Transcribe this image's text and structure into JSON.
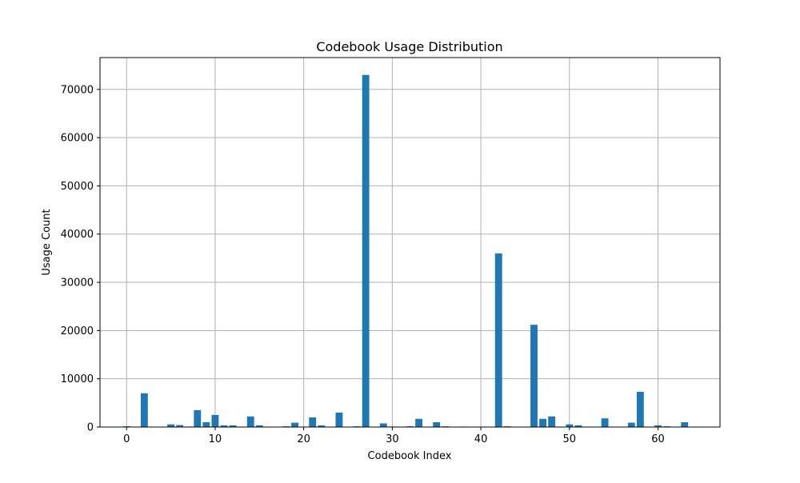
{
  "chart_data": {
    "type": "bar",
    "title": "Codebook Usage Distribution",
    "xlabel": "Codebook Index",
    "ylabel": "Usage Count",
    "xlim": [
      -3,
      67
    ],
    "ylim": [
      0,
      76600
    ],
    "grid": true,
    "bar_color": "#1f77b4",
    "x_ticks": [
      0,
      10,
      20,
      30,
      40,
      50,
      60
    ],
    "y_ticks": [
      0,
      10000,
      20000,
      30000,
      40000,
      50000,
      60000,
      70000
    ],
    "x": [
      0,
      1,
      2,
      3,
      4,
      5,
      6,
      7,
      8,
      9,
      10,
      11,
      12,
      13,
      14,
      15,
      16,
      17,
      18,
      19,
      20,
      21,
      22,
      23,
      24,
      25,
      26,
      27,
      28,
      29,
      30,
      31,
      32,
      33,
      34,
      35,
      36,
      37,
      38,
      39,
      40,
      41,
      42,
      43,
      44,
      45,
      46,
      47,
      48,
      49,
      50,
      51,
      52,
      53,
      54,
      55,
      56,
      57,
      58,
      59,
      60,
      61,
      62,
      63
    ],
    "values": [
      150,
      0,
      7000,
      0,
      0,
      550,
      400,
      100,
      3500,
      1000,
      2500,
      350,
      350,
      0,
      2200,
      350,
      0,
      0,
      150,
      900,
      0,
      2000,
      350,
      0,
      3000,
      0,
      150,
      73000,
      0,
      750,
      100,
      0,
      150,
      1700,
      0,
      1000,
      150,
      0,
      100,
      0,
      0,
      0,
      36000,
      150,
      0,
      0,
      21200,
      1700,
      2200,
      0,
      550,
      350,
      0,
      0,
      1800,
      0,
      0,
      900,
      7300,
      0,
      350,
      150,
      0,
      1000
    ]
  }
}
